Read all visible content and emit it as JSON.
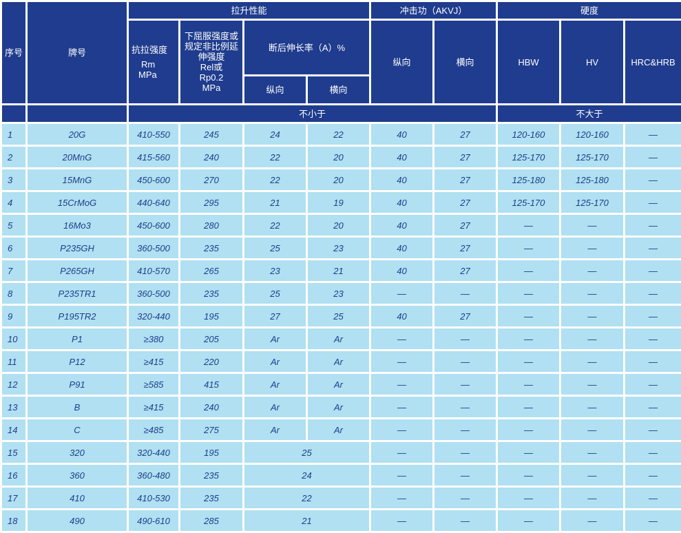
{
  "header": {
    "seq": "序号",
    "grade": "牌号",
    "tensile_group": "拉升性能",
    "impact_group": "冲击功（AKVJ）",
    "hardness_group": "硬度",
    "tensile_strength": "抗拉强度",
    "tensile_strength_unit1": "Rm",
    "tensile_strength_unit2": "MPa",
    "yield_line1": "下屈服强度或",
    "yield_line2": "规定非比例延",
    "yield_line3": "伸强度",
    "yield_line4": "Rel或",
    "yield_line5": "Rp0.2",
    "yield_line6": "MPa",
    "elongation": "断后伸长率（A）%",
    "longitudinal": "纵向",
    "transverse": "横向",
    "impact_longitudinal": "纵向",
    "impact_transverse": "横向",
    "hbw": "HBW",
    "hv": "HV",
    "hrc": "HRC&HRB",
    "not_less": "不小于",
    "not_more": "不大于"
  },
  "rows": [
    [
      "1",
      "20G",
      "410-550",
      "245",
      "24",
      "22",
      "40",
      "27",
      "120-160",
      "120-160",
      "—"
    ],
    [
      "2",
      "20MnG",
      "415-560",
      "240",
      "22",
      "20",
      "40",
      "27",
      "125-170",
      "125-170",
      "—"
    ],
    [
      "3",
      "15MnG",
      "450-600",
      "270",
      "22",
      "20",
      "40",
      "27",
      "125-180",
      "125-180",
      "—"
    ],
    [
      "4",
      "15CrMoG",
      "440-640",
      "295",
      "21",
      "19",
      "40",
      "27",
      "125-170",
      "125-170",
      "—"
    ],
    [
      "5",
      "16Mo3",
      "450-600",
      "280",
      "22",
      "20",
      "40",
      "27",
      "—",
      "—",
      "—"
    ],
    [
      "6",
      "P235GH",
      "360-500",
      "235",
      "25",
      "23",
      "40",
      "27",
      "—",
      "—",
      "—"
    ],
    [
      "7",
      "P265GH",
      "410-570",
      "265",
      "23",
      "21",
      "40",
      "27",
      "—",
      "—",
      "—"
    ],
    [
      "8",
      "P235TR1",
      "360-500",
      "235",
      "25",
      "23",
      "—",
      "—",
      "—",
      "—",
      "—"
    ],
    [
      "9",
      "P195TR2",
      "320-440",
      "195",
      "27",
      "25",
      "40",
      "27",
      "—",
      "—",
      "—"
    ],
    [
      "10",
      "P1",
      "≥380",
      "205",
      "Ar",
      "Ar",
      "—",
      "—",
      "—",
      "—",
      "—"
    ],
    [
      "11",
      "P12",
      "≥415",
      "220",
      "Ar",
      "Ar",
      "—",
      "—",
      "—",
      "—",
      "—"
    ],
    [
      "12",
      "P91",
      "≥585",
      "415",
      "Ar",
      "Ar",
      "—",
      "—",
      "—",
      "—",
      "—"
    ],
    [
      "13",
      "B",
      "≥415",
      "240",
      "Ar",
      "Ar",
      "—",
      "—",
      "—",
      "—",
      "—"
    ],
    [
      "14",
      "C",
      "≥485",
      "275",
      "Ar",
      "Ar",
      "—",
      "—",
      "—",
      "—",
      "—"
    ],
    [
      "15",
      "320",
      "320-440",
      "195",
      "25",
      null,
      "—",
      "—",
      "—",
      "—",
      "—"
    ],
    [
      "16",
      "360",
      "360-480",
      "235",
      "24",
      null,
      "—",
      "—",
      "—",
      "—",
      "—"
    ],
    [
      "17",
      "410",
      "410-530",
      "235",
      "22",
      null,
      "—",
      "—",
      "—",
      "—",
      "—"
    ],
    [
      "18",
      "490",
      "490-610",
      "285",
      "21",
      null,
      "—",
      "—",
      "—",
      "—",
      "—"
    ]
  ],
  "colors": {
    "header_bg": "#1f3c8e",
    "cell_bg": "#b0e0f1",
    "cell_text": "#1f3c8e"
  }
}
